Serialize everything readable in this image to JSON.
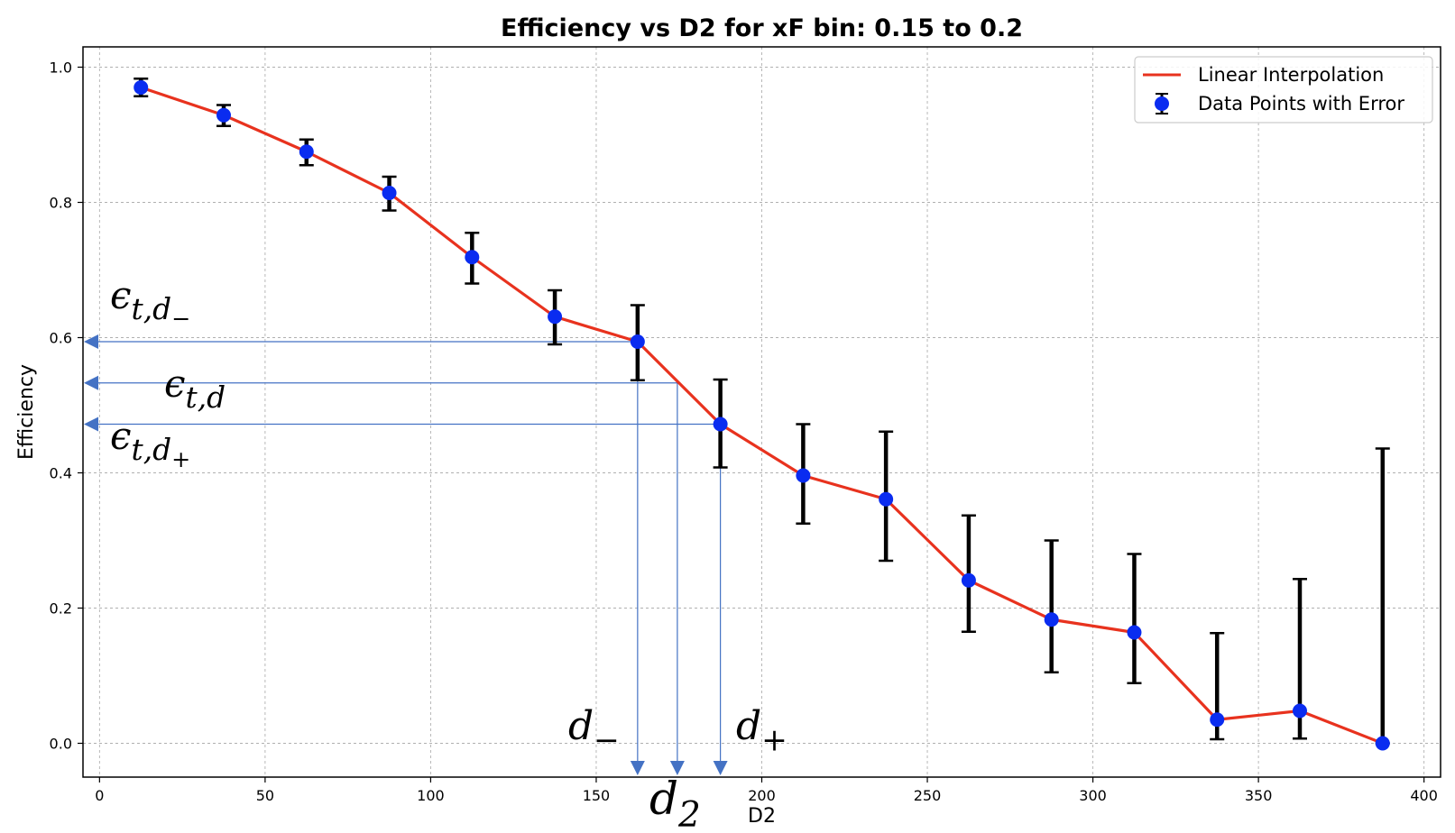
{
  "chart_data": {
    "type": "line",
    "title": "Efficiency vs D2 for xF bin: 0.15 to 0.2",
    "xlabel": "D2",
    "ylabel": "Efficiency",
    "xlim": [
      -5,
      405
    ],
    "ylim": [
      -0.05,
      1.03
    ],
    "x_ticks": [
      0,
      50,
      100,
      150,
      200,
      250,
      300,
      350,
      400
    ],
    "y_ticks": [
      0.0,
      0.2,
      0.4,
      0.6,
      0.8,
      1.0
    ],
    "x_tick_labels": [
      "0",
      "50",
      "100",
      "150",
      "200",
      "250",
      "300",
      "350",
      "400"
    ],
    "y_tick_labels": [
      "0.0",
      "0.2",
      "0.4",
      "0.6",
      "0.8",
      "1.0"
    ],
    "grid": true,
    "legend_position": "top-right",
    "series": [
      {
        "name": "Linear Interpolation",
        "kind": "line",
        "color": "#e8321e",
        "x": [
          12.5,
          37.5,
          62.5,
          87.5,
          112.5,
          137.5,
          162.5,
          187.5,
          212.5,
          237.5,
          262.5,
          287.5,
          312.5,
          337.5,
          362.5,
          387.5
        ],
        "y": [
          0.97,
          0.929,
          0.875,
          0.814,
          0.719,
          0.631,
          0.594,
          0.472,
          0.396,
          0.361,
          0.241,
          0.183,
          0.164,
          0.035,
          0.048,
          0.0
        ]
      },
      {
        "name": "Data Points with Error",
        "kind": "errorbar",
        "color": "#0a2cf0",
        "errcolor": "#000000",
        "x": [
          12.5,
          37.5,
          62.5,
          87.5,
          112.5,
          137.5,
          162.5,
          187.5,
          212.5,
          237.5,
          262.5,
          287.5,
          312.5,
          337.5,
          362.5,
          387.5
        ],
        "y": [
          0.97,
          0.929,
          0.875,
          0.814,
          0.719,
          0.631,
          0.594,
          0.472,
          0.396,
          0.361,
          0.241,
          0.183,
          0.164,
          0.035,
          0.048,
          0.0
        ],
        "yerr_low": [
          0.957,
          0.913,
          0.855,
          0.788,
          0.68,
          0.59,
          0.537,
          0.408,
          0.325,
          0.27,
          0.165,
          0.105,
          0.089,
          0.006,
          0.007,
          0.0
        ],
        "yerr_high": [
          0.983,
          0.944,
          0.893,
          0.838,
          0.755,
          0.67,
          0.648,
          0.538,
          0.472,
          0.461,
          0.337,
          0.3,
          0.28,
          0.163,
          0.243,
          0.436
        ]
      }
    ],
    "annotations": {
      "color": "#4472c4",
      "d_minus": 162.5,
      "d": 174.5,
      "d_plus": 187.5,
      "eff_d_minus": 0.594,
      "eff_d": 0.533,
      "eff_d_plus": 0.472,
      "labels": {
        "eps_minus": {
          "base": "ϵ",
          "sub": "t,d",
          "subsub": "−"
        },
        "eps_mid": {
          "base": "ϵ",
          "sub": "t,d"
        },
        "eps_plus": {
          "base": "ϵ",
          "sub": "t,d",
          "subsub": "+"
        },
        "d_minus": {
          "base": "d",
          "sub": "−"
        },
        "d_two": {
          "base": "d",
          "sub": "2"
        },
        "d_plus": {
          "base": "d",
          "sub": "+"
        }
      }
    }
  }
}
